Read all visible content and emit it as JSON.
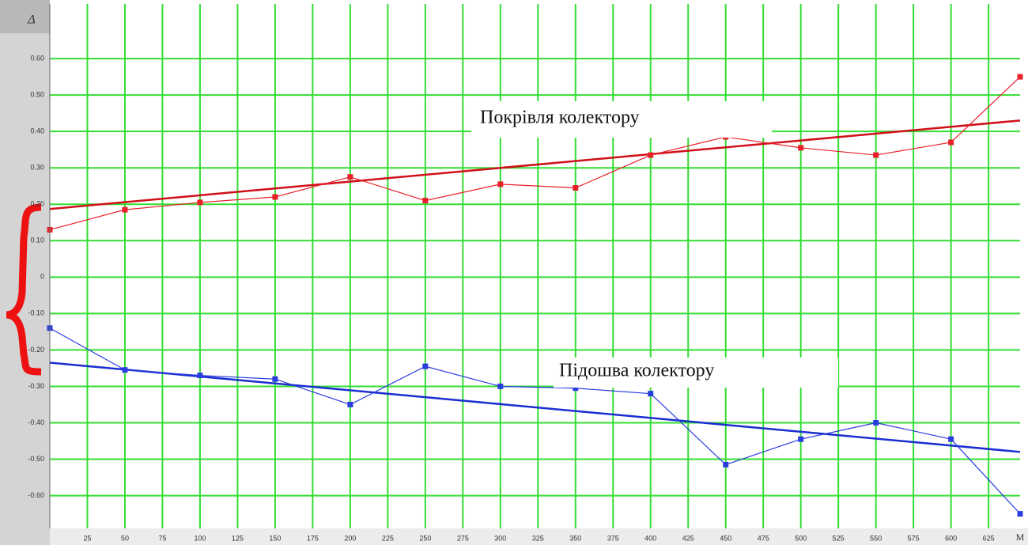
{
  "chart_data": {
    "type": "line",
    "x_label": "М",
    "y_label": "Δ",
    "annotations": [
      "Покрівля колектору",
      "Підошва колектору"
    ],
    "x": [
      0,
      50,
      100,
      150,
      200,
      250,
      300,
      350,
      400,
      450,
      500,
      550,
      600,
      646
    ],
    "series": [
      {
        "color": "#e8202a",
        "values": [
          0.13,
          0.185,
          0.205,
          0.22,
          0.275,
          0.21,
          0.255,
          0.245,
          0.335,
          0.385,
          0.355,
          0.335,
          0.37,
          0.55
        ]
      },
      {
        "color": "#2a3ee0",
        "values": [
          -0.14,
          -0.255,
          -0.27,
          -0.28,
          -0.35,
          -0.245,
          -0.3,
          -0.305,
          -0.32,
          -0.515,
          -0.445,
          -0.4,
          -0.445,
          -0.65
        ]
      }
    ],
    "trends": [
      {
        "color": "#d01018",
        "x": [
          0,
          646
        ],
        "values": [
          0.187,
          0.43
        ]
      },
      {
        "color": "#1a2ed0",
        "x": [
          0,
          646
        ],
        "values": [
          -0.235,
          -0.48
        ]
      }
    ],
    "xlim": [
      0,
      646
    ],
    "ylim": [
      -0.69,
      0.75
    ],
    "xticks": [
      25,
      50,
      75,
      100,
      125,
      150,
      175,
      200,
      225,
      250,
      275,
      300,
      325,
      350,
      375,
      400,
      425,
      450,
      475,
      500,
      525,
      550,
      575,
      600,
      625
    ],
    "yticks": [
      {
        "value": 0.6,
        "label": "0.60"
      },
      {
        "value": 0.5,
        "label": "0.50"
      },
      {
        "value": 0.4,
        "label": "0.40"
      },
      {
        "value": 0.3,
        "label": "0.30"
      },
      {
        "value": 0.2,
        "label": "0.20"
      },
      {
        "value": 0.1,
        "label": "0.10"
      },
      0,
      {
        "value": -0.1,
        "label": "-0.10"
      },
      {
        "value": -0.2,
        "label": "-0.20"
      },
      {
        "value": -0.3,
        "label": "-0.30"
      },
      {
        "value": -0.4,
        "label": "-0.40"
      },
      {
        "value": -0.5,
        "label": "-0.50"
      },
      {
        "value": -0.6,
        "label": "-0.60"
      }
    ],
    "grid": true,
    "grid_color": "#33dd33"
  }
}
